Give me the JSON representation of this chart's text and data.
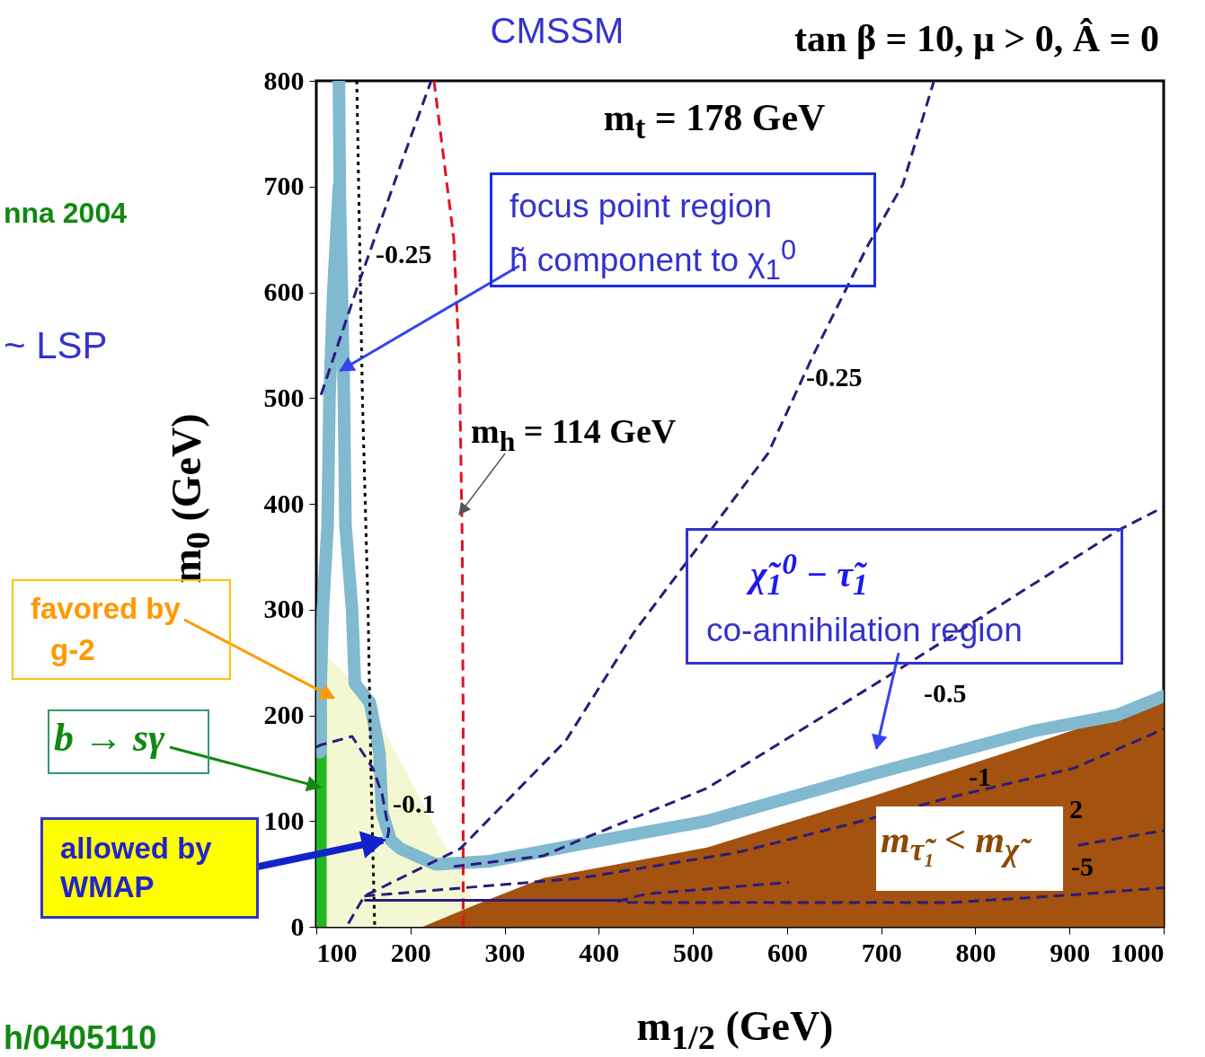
{
  "chart_data": {
    "type": "line",
    "title": "CMSSM",
    "subtitle": "tan β = 10, μ > 0, Â = 0",
    "xlabel": "m$_{1/2}$ (GeV)",
    "ylabel": "m$_{0}$ (GeV)",
    "xlim": [
      100,
      1000
    ],
    "xticks": [
      100,
      200,
      300,
      400,
      500,
      600,
      700,
      800,
      900,
      1000
    ],
    "ylim": [
      0,
      800
    ],
    "yticks": [
      0,
      100,
      200,
      300,
      400,
      500,
      600,
      700,
      800
    ],
    "series": [
      {
        "type": "area",
        "color": "#f4f8d2",
        "x": [
          100,
          110,
          136,
          160,
          198,
          236,
          260,
          267,
          269
        ],
        "values": [
          257,
          257,
          235,
          205,
          142,
          78,
          44,
          23,
          0
        ]
      },
      {
        "type": "area",
        "color": "#22b822",
        "x": [
          100,
          111
        ],
        "values": [
          205,
          205
        ]
      },
      {
        "type": "area",
        "color": "#a3520f",
        "x": [
          213,
          275,
          341,
          515,
          689,
          861,
          1000
        ],
        "values": [
          0,
          23,
          46,
          75,
          123,
          173,
          215
        ]
      },
      {
        "color": "#80b9d0",
        "x": [
          124,
          125,
          129,
          131,
          138,
          141,
          157,
          167,
          170,
          179,
          189,
          227,
          284,
          380,
          515,
          689,
          861,
          950,
          1000
        ],
        "values": [
          800,
          691,
          521,
          380,
          300,
          230,
          212,
          165,
          108,
          82,
          74,
          59,
          62,
          78,
          100,
          144,
          185,
          200,
          218
        ]
      },
      {
        "color": "#80b9d0",
        "x": [
          124,
          118,
          114,
          112,
          107,
          105,
          104
        ],
        "values": [
          700,
          600,
          500,
          380,
          300,
          240,
          165
        ]
      },
      {
        "color": "#e0141e",
        "line_style": "dashed",
        "x": [
          225,
          246,
          252,
          255,
          256,
          256
        ],
        "values": [
          800,
          651,
          532,
          363,
          193,
          0
        ]
      },
      {
        "color": "#000000",
        "line_style": "dotted",
        "x": [
          143,
          149,
          155,
          158,
          162
        ],
        "values": [
          800,
          500,
          300,
          150,
          0
        ]
      },
      {
        "color": "#2b1b7d",
        "line_style": "dashed",
        "x": [
          105,
          144,
          189,
          222
        ],
        "values": [
          503,
          606,
          719,
          800
        ]
      },
      {
        "color": "#2b1b7d",
        "line_style": "dashed",
        "x": [
          134,
          151,
          253,
          365,
          437,
          523,
          580,
          628,
          685,
          723,
          756
        ],
        "values": [
          3,
          29,
          74,
          176,
          278,
          380,
          448,
          541,
          643,
          702,
          800
        ]
      },
      {
        "color": "#2b1b7d",
        "line_style": "dashed",
        "x": [
          100,
          105,
          138,
          160,
          170,
          177,
          175
        ],
        "values": [
          170,
          172,
          180,
          150,
          125,
          91,
          82
        ]
      },
      {
        "color": "#2b1b7d",
        "line_style": "dashed",
        "x": [
          246,
          341,
          380,
          515,
          718,
          952,
          1000
        ],
        "values": [
          57,
          67,
          82,
          131,
          243,
          375,
          397
        ]
      },
      {
        "color": "#2b1b7d",
        "line_style": "dashed",
        "x": [
          151,
          380,
          546,
          662,
          776,
          905,
          1000
        ],
        "values": [
          29,
          46,
          70,
          96,
          123,
          150,
          187
        ]
      },
      {
        "color": "#2b1b7d",
        "line_style": "dashed",
        "x": [
          420,
          450,
          602,
          706,
          909,
          1000
        ],
        "values": [
          24,
          31,
          42,
          null,
          77,
          91
        ]
      },
      {
        "color": "#2b1b7d",
        "line_style": "dashed",
        "x": [
          430,
          776,
          900,
          1000
        ],
        "values": [
          23,
          23,
          30,
          37
        ]
      },
      {
        "color": "#2b1b7d",
        "line_style": "solid",
        "x": [
          151,
          430
        ],
        "values": [
          25,
          25
        ]
      }
    ],
    "annotations": [
      "m$_{t}$ = 178 GeV",
      {
        "text": "m$_{h}$ = 114 GeV",
        "x": 256,
        "y": 385
      },
      "focus point region",
      {
        "text": "h̃ component to χ$_{1}$$^{0}$",
        "x": 129,
        "y": 521
      },
      "χ̃$_{1}$$^{0}$ − τ̃$_{1}$",
      "co-annihilation region",
      "m$_{τ̃₁}$ < m$_{χ̃}$",
      "favored by",
      "g-2",
      "b → sγ",
      "allowed by",
      "WMAP",
      "nna 2004",
      "~ LSP",
      "h/0405110",
      "-0.25",
      "-0.25",
      "-0.1",
      "-0.5",
      "-1",
      "2",
      "-5"
    ]
  }
}
